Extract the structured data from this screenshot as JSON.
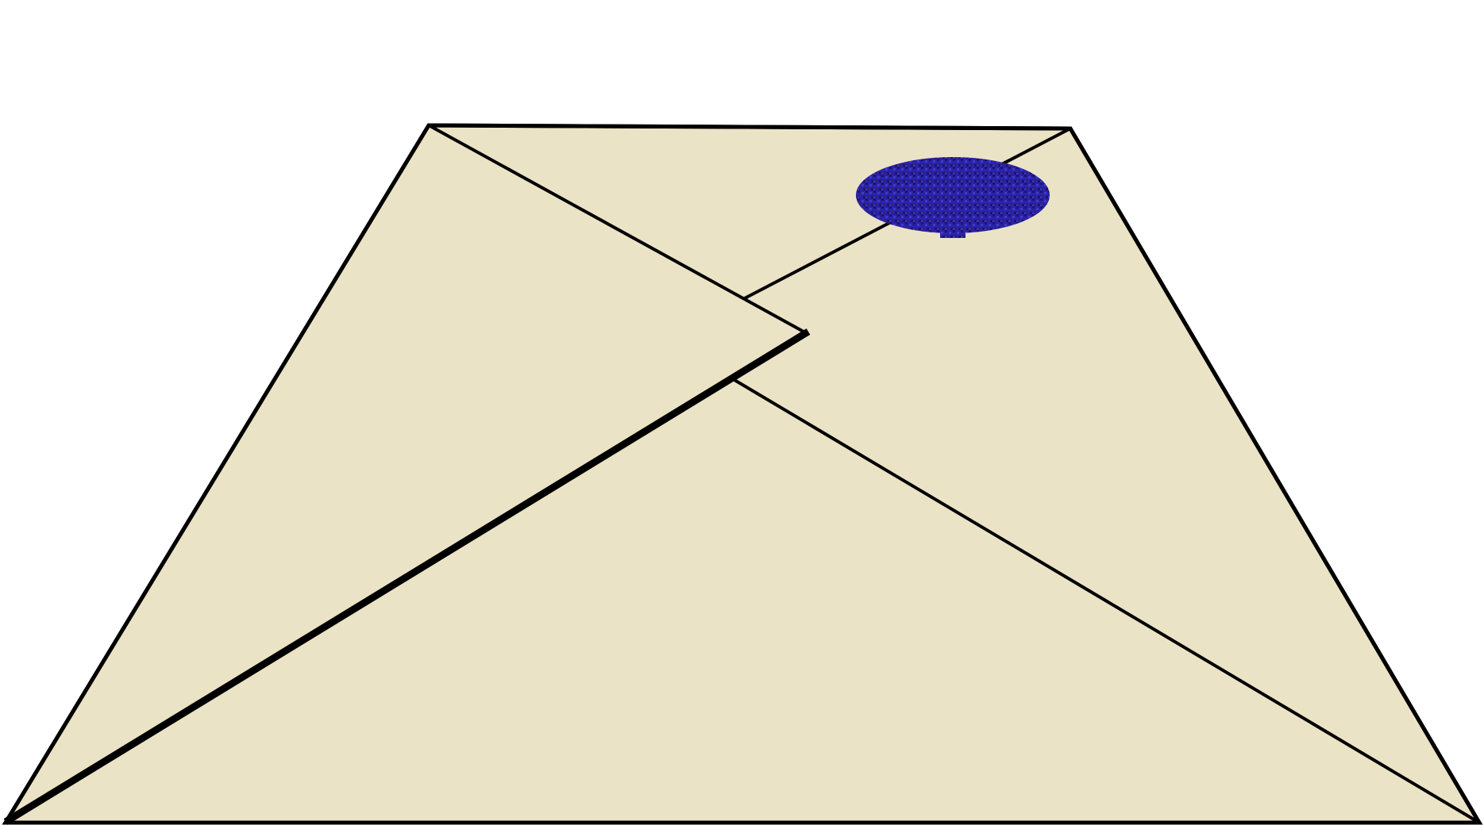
{
  "illustration": {
    "subject": "envelope-with-wax-seal-icon",
    "colors": {
      "background": "#ffffff",
      "paper": "#ebe3c5",
      "outline": "#000000",
      "seal_dark": "#1a1470",
      "seal_mid": "#2a22a8",
      "seal_light": "#3c3cc8",
      "seal_purple": "#3a1f7a"
    }
  }
}
